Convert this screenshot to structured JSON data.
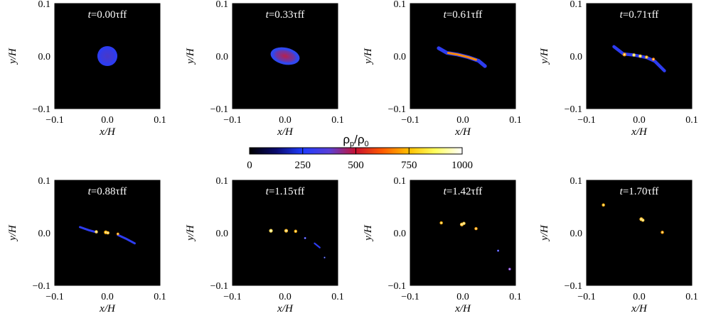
{
  "chart_data": {
    "type": "scatter",
    "colorbar": {
      "title": "ρp/ρ0",
      "ticks": [
        0,
        250,
        500,
        750,
        1000
      ],
      "range": [
        0,
        1000
      ],
      "colormap": [
        "#000000",
        "#0a0a6e",
        "#1f3cff",
        "#5a3fd6",
        "#c8102e",
        "#ff5a00",
        "#ffc000",
        "#ffff60",
        "#ffffff"
      ]
    },
    "panels": [
      {
        "label_t": "t",
        "time": "=0.00τff",
        "xlabel": "x/H",
        "ylabel": "y/H",
        "xlim": [
          -0.1,
          0.1
        ],
        "ylim": [
          -0.1,
          0.1
        ],
        "xticks": [
          "−0.1",
          "0.0",
          "0.1"
        ],
        "yticks": [
          "0.1",
          "0.0",
          "−0.1"
        ],
        "features": [
          {
            "kind": "blob",
            "x": 0.0,
            "y": 0.0,
            "rx": 0.019,
            "ry": 0.019,
            "angle": 0,
            "color": "#2d3cf0",
            "core": "#4838c8"
          }
        ]
      },
      {
        "label_t": "t",
        "time": "=0.33τff",
        "xlabel": "x/H",
        "ylabel": "y/H",
        "xlim": [
          -0.1,
          0.1
        ],
        "ylim": [
          -0.1,
          0.1
        ],
        "xticks": [
          "−0.1",
          "0.0",
          "0.1"
        ],
        "yticks": [
          "0.1",
          "0.0",
          "−0.1"
        ],
        "features": [
          {
            "kind": "blob",
            "x": 0.0,
            "y": 0.0,
            "rx": 0.028,
            "ry": 0.016,
            "angle": 12,
            "color": "#3048f0",
            "core": "#b8204a"
          }
        ]
      },
      {
        "label_t": "t",
        "time": "=0.61τff",
        "xlabel": "x/H",
        "ylabel": "y/H",
        "xlim": [
          -0.1,
          0.1
        ],
        "ylim": [
          -0.1,
          0.1
        ],
        "xticks": [
          "−0.1",
          "0.0",
          "0.1"
        ],
        "yticks": [
          "0.1",
          "0.0",
          "−0.1"
        ],
        "features": [
          {
            "kind": "filament",
            "points": [
              [
                -0.046,
                0.015
              ],
              [
                -0.03,
                0.006
              ],
              [
                -0.01,
                0.003
              ],
              [
                0.01,
                -0.002
              ],
              [
                0.03,
                -0.009
              ],
              [
                0.042,
                -0.019
              ]
            ],
            "color": "#2d3cf0",
            "width": 0.007
          },
          {
            "kind": "filament",
            "points": [
              [
                -0.028,
                0.006
              ],
              [
                -0.01,
                0.003
              ],
              [
                0.01,
                -0.002
              ],
              [
                0.025,
                -0.007
              ]
            ],
            "color": "#ff8a00",
            "width": 0.004
          }
        ]
      },
      {
        "label_t": "t",
        "time": "=0.71τff",
        "xlabel": "x/H",
        "ylabel": "y/H",
        "xlim": [
          -0.1,
          0.1
        ],
        "ylim": [
          -0.1,
          0.1
        ],
        "xticks": [
          "−0.1",
          "0.0",
          "0.1"
        ],
        "yticks": [
          "0.1",
          "0.0",
          "−0.1"
        ],
        "features": [
          {
            "kind": "filament",
            "points": [
              [
                -0.048,
                0.018
              ],
              [
                -0.03,
                0.004
              ],
              [
                -0.01,
                0.002
              ],
              [
                0.015,
                -0.003
              ],
              [
                0.03,
                -0.01
              ],
              [
                0.048,
                -0.028
              ]
            ],
            "color": "#2d3cf0",
            "width": 0.006
          },
          {
            "kind": "clump",
            "x": -0.028,
            "y": 0.003,
            "r": 0.0035,
            "color": "#ff9a00"
          },
          {
            "kind": "clump",
            "x": -0.01,
            "y": 0.002,
            "r": 0.003,
            "color": "#ffe040"
          },
          {
            "kind": "clump",
            "x": 0.002,
            "y": 0.0,
            "r": 0.003,
            "color": "#ffd030"
          },
          {
            "kind": "clump",
            "x": 0.014,
            "y": -0.002,
            "r": 0.003,
            "color": "#ffb000"
          },
          {
            "kind": "clump",
            "x": 0.027,
            "y": -0.006,
            "r": 0.003,
            "color": "#ff8000"
          }
        ]
      },
      {
        "label_t": "t",
        "time": "=0.88τff",
        "xlabel": "x/H",
        "ylabel": "y/H",
        "xlim": [
          -0.1,
          0.1
        ],
        "ylim": [
          -0.1,
          0.1
        ],
        "xticks": [
          "−0.1",
          "0.0",
          "0.1"
        ],
        "yticks": [
          "0.1",
          "0.0",
          "−0.1"
        ],
        "features": [
          {
            "kind": "filament",
            "points": [
              [
                -0.052,
                0.011
              ],
              [
                -0.035,
                0.005
              ],
              [
                -0.02,
                0.001
              ]
            ],
            "color": "#2d3cf0",
            "width": 0.004
          },
          {
            "kind": "filament",
            "points": [
              [
                0.02,
                -0.004
              ],
              [
                0.035,
                -0.011
              ],
              [
                0.052,
                -0.02
              ]
            ],
            "color": "#2d3cf0",
            "width": 0.004
          },
          {
            "kind": "clump",
            "x": -0.021,
            "y": 0.002,
            "r": 0.003,
            "color": "#ffd040"
          },
          {
            "kind": "clump",
            "x": -0.003,
            "y": 0.001,
            "r": 0.0035,
            "color": "#ffb000"
          },
          {
            "kind": "clump",
            "x": 0.001,
            "y": 0.0,
            "r": 0.003,
            "color": "#ffc030"
          },
          {
            "kind": "clump",
            "x": 0.02,
            "y": -0.002,
            "r": 0.0025,
            "color": "#ff9a00"
          }
        ]
      },
      {
        "label_t": "t",
        "time": "=1.15τff",
        "xlabel": "x/H",
        "ylabel": "y/H",
        "xlim": [
          -0.1,
          0.1
        ],
        "ylim": [
          -0.1,
          0.1
        ],
        "xticks": [
          "−0.1",
          "0.0",
          "0.1"
        ],
        "yticks": [
          "0.1",
          "0.0",
          "−0.1"
        ],
        "features": [
          {
            "kind": "clump",
            "x": -0.027,
            "y": 0.004,
            "r": 0.0035,
            "color": "#ffe060"
          },
          {
            "kind": "clump",
            "x": 0.002,
            "y": 0.004,
            "r": 0.0035,
            "color": "#ffc030"
          },
          {
            "kind": "clump",
            "x": 0.02,
            "y": 0.003,
            "r": 0.003,
            "color": "#ffb000"
          },
          {
            "kind": "clump",
            "x": 0.038,
            "y": -0.01,
            "r": 0.002,
            "color": "#3a40ff"
          },
          {
            "kind": "filament",
            "points": [
              [
                0.056,
                -0.02
              ],
              [
                0.066,
                -0.028
              ]
            ],
            "color": "#2d3cf0",
            "width": 0.003
          },
          {
            "kind": "clump",
            "x": 0.075,
            "y": -0.047,
            "r": 0.0015,
            "color": "#2030c0"
          }
        ]
      },
      {
        "label_t": "t",
        "time": "=1.42τff",
        "xlabel": "x/H",
        "ylabel": "y/H",
        "xlim": [
          -0.1,
          0.1
        ],
        "ylim": [
          -0.1,
          0.1
        ],
        "xticks": [
          "−0.1",
          "0.0",
          "0.1"
        ],
        "yticks": [
          "0.1",
          "0.0",
          "−0.1"
        ],
        "features": [
          {
            "kind": "clump",
            "x": -0.041,
            "y": 0.019,
            "r": 0.003,
            "color": "#ffb000"
          },
          {
            "kind": "clump",
            "x": -0.002,
            "y": 0.016,
            "r": 0.0035,
            "color": "#ffc030"
          },
          {
            "kind": "clump",
            "x": 0.002,
            "y": 0.018,
            "r": 0.003,
            "color": "#ffd040"
          },
          {
            "kind": "clump",
            "x": 0.025,
            "y": 0.008,
            "r": 0.003,
            "color": "#ffa000"
          },
          {
            "kind": "clump",
            "x": 0.067,
            "y": -0.034,
            "r": 0.002,
            "color": "#3a40ff"
          },
          {
            "kind": "clump",
            "x": 0.089,
            "y": -0.069,
            "r": 0.0025,
            "color": "#8040e0"
          }
        ]
      },
      {
        "label_t": "t",
        "time": "=1.70τff",
        "xlabel": "x/H",
        "ylabel": "y/H",
        "xlim": [
          -0.1,
          0.1
        ],
        "ylim": [
          -0.1,
          0.1
        ],
        "xticks": [
          "−0.1",
          "0.0",
          "0.1"
        ],
        "yticks": [
          "0.1",
          "0.0",
          "−0.1"
        ],
        "features": [
          {
            "kind": "clump",
            "x": -0.068,
            "y": 0.053,
            "r": 0.003,
            "color": "#ffb000"
          },
          {
            "kind": "clump",
            "x": 0.004,
            "y": 0.026,
            "r": 0.0035,
            "color": "#ffc030"
          },
          {
            "kind": "clump",
            "x": 0.007,
            "y": 0.024,
            "r": 0.003,
            "color": "#ffd040"
          },
          {
            "kind": "clump",
            "x": 0.044,
            "y": 0.001,
            "r": 0.003,
            "color": "#ffa000"
          }
        ]
      }
    ]
  }
}
